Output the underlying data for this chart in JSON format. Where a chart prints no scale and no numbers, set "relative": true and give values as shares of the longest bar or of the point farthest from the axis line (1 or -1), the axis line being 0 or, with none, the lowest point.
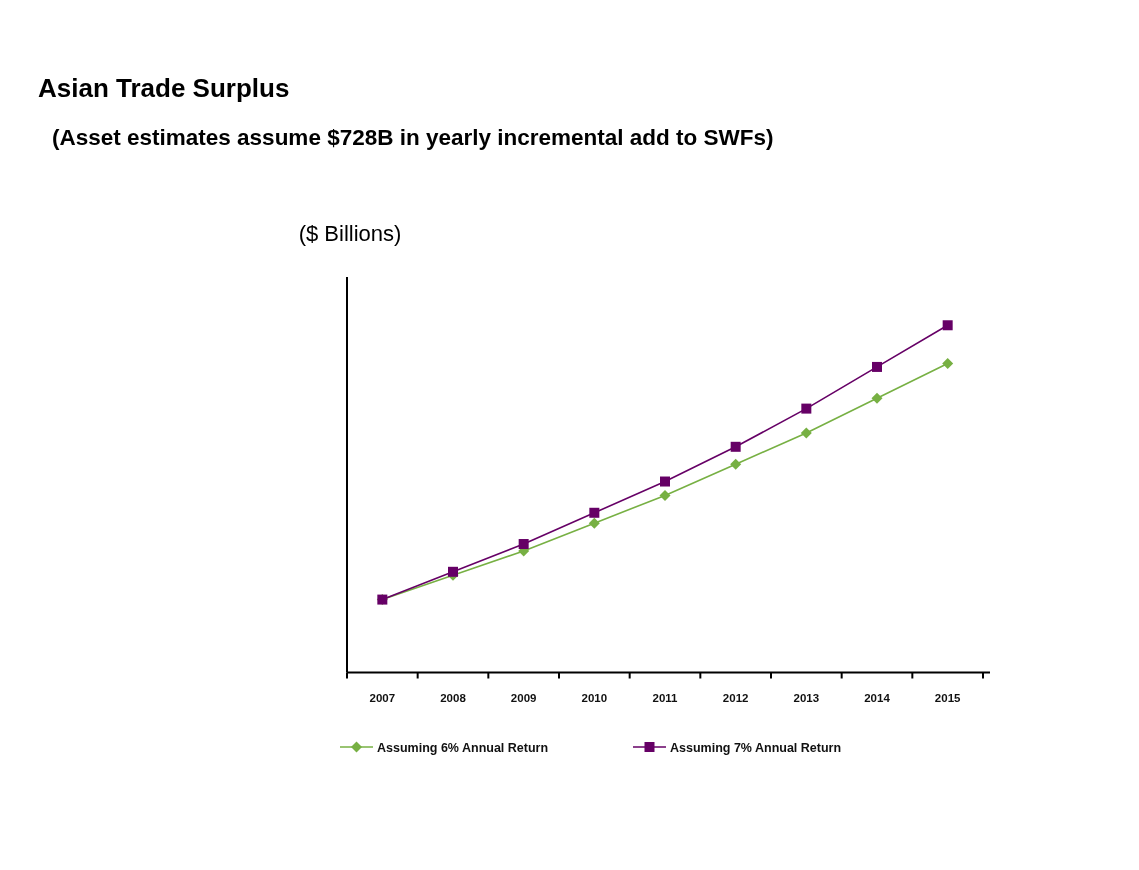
{
  "chart_data": {
    "type": "line",
    "title": "Asian Trade Surplus",
    "subtitle": "(Asset estimates assume $728B in yearly incremental add to SWFs)",
    "ylabel": "($ Billions)",
    "categories": [
      "2007",
      "2008",
      "2009",
      "2010",
      "2011",
      "2012",
      "2013",
      "2014",
      "2015"
    ],
    "relative": true,
    "series": [
      {
        "name": "Assuming 6% Annual Return",
        "color": "#77b043",
        "marker": "diamond",
        "values": [
          0.21,
          0.28,
          0.35,
          0.43,
          0.51,
          0.6,
          0.69,
          0.79,
          0.89
        ]
      },
      {
        "name": "Assuming 7% Annual Return",
        "color": "#660066",
        "marker": "square",
        "values": [
          0.21,
          0.29,
          0.37,
          0.46,
          0.55,
          0.65,
          0.76,
          0.88,
          1
        ]
      }
    ],
    "legend": "bottom",
    "line_style": "solid"
  }
}
